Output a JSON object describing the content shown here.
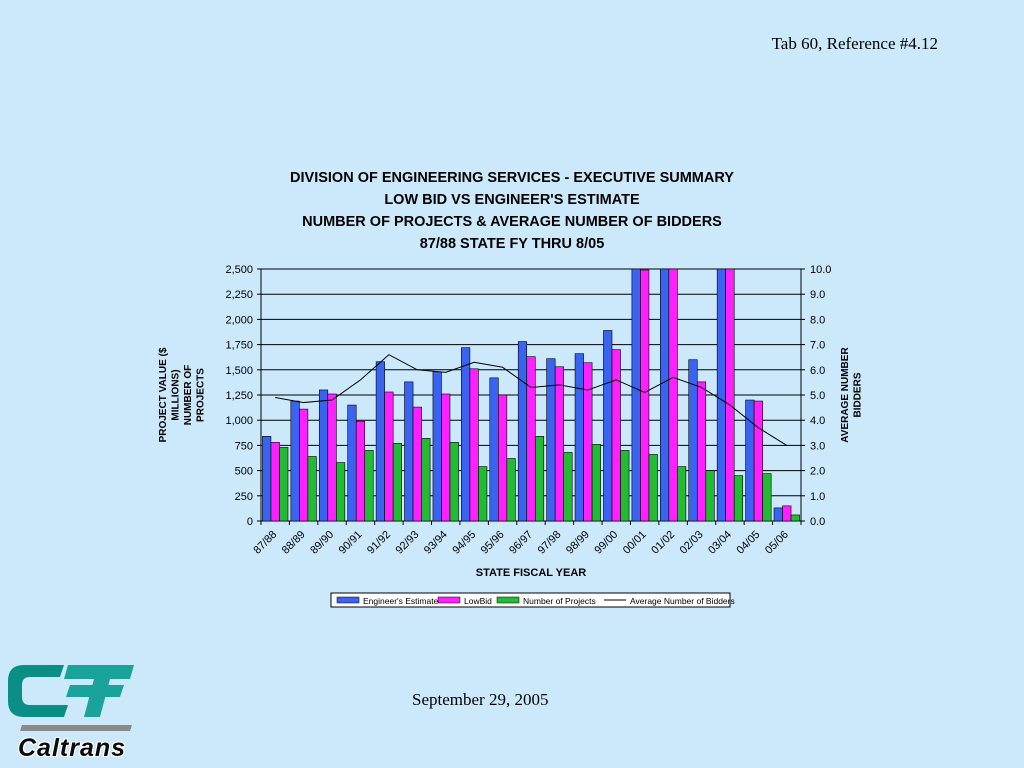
{
  "header": {
    "reference": "Tab 60, Reference #4.12"
  },
  "footer": {
    "date": "September 29, 2005"
  },
  "logo": {
    "text": "Caltrans"
  },
  "colors": {
    "background": "#cce9fb",
    "engineers_estimate": "#3a63f0",
    "low_bid": "#ff20ff",
    "number_of_projects": "#22bb33",
    "average_bidders": "#000000"
  },
  "chart_data": {
    "type": "bar",
    "title": [
      "DIVISION OF ENGINEERING SERVICES - EXECUTIVE SUMMARY",
      "LOW BID VS ENGINEER'S ESTIMATE",
      "NUMBER OF PROJECTS & AVERAGE NUMBER OF BIDDERS",
      "87/88 STATE FY THRU 8/05"
    ],
    "xlabel": "STATE FISCAL YEAR",
    "ylabel_left": [
      "PROJECT VALUE ($",
      "MILLIONS)",
      "NUMBER OF",
      "PROJECTS"
    ],
    "ylabel_right": [
      "AVERAGE NUMBER",
      "BIDDERS"
    ],
    "ylim_left": [
      0,
      2500
    ],
    "ylim_right": [
      0,
      10
    ],
    "yticks_left": [
      "0",
      "250",
      "500",
      "750",
      "1,000",
      "1,250",
      "1,500",
      "1,750",
      "2,000",
      "2,250",
      "2,500"
    ],
    "yticks_right": [
      "0.0",
      "1.0",
      "2.0",
      "3.0",
      "4.0",
      "5.0",
      "6.0",
      "7.0",
      "8.0",
      "9.0",
      "10.0"
    ],
    "grid": true,
    "legend_position": "bottom",
    "categories": [
      "87/88",
      "88/89",
      "89/90",
      "90/91",
      "91/92",
      "92/93",
      "93/94",
      "94/95",
      "95/96",
      "96/97",
      "97/98",
      "98/99",
      "99/00",
      "00/01",
      "01/02",
      "02/03",
      "03/04",
      "04/05",
      "05/06"
    ],
    "series": [
      {
        "name": "Engineer's Estimate",
        "axis": "left",
        "kind": "bar",
        "values": [
          840,
          1190,
          1300,
          1150,
          1580,
          1380,
          1480,
          1720,
          1420,
          1780,
          1610,
          1660,
          1890,
          2520,
          2520,
          1600,
          2520,
          1200,
          130
        ]
      },
      {
        "name": "LowBid",
        "axis": "left",
        "kind": "bar",
        "values": [
          780,
          1110,
          1260,
          990,
          1280,
          1130,
          1260,
          1510,
          1250,
          1630,
          1530,
          1570,
          1700,
          2490,
          2520,
          1380,
          2520,
          1190,
          150
        ]
      },
      {
        "name": "Number of Projects",
        "axis": "left",
        "kind": "bar",
        "values": [
          730,
          640,
          580,
          700,
          770,
          820,
          780,
          540,
          620,
          840,
          680,
          760,
          700,
          660,
          540,
          500,
          450,
          470,
          60
        ]
      },
      {
        "name": "Average Number of Bidders",
        "axis": "right",
        "kind": "line",
        "values": [
          4.9,
          4.7,
          4.8,
          5.6,
          6.6,
          6.0,
          5.9,
          6.3,
          6.1,
          5.3,
          5.4,
          5.2,
          5.6,
          5.1,
          5.7,
          5.3,
          4.6,
          3.7,
          3.0
        ]
      }
    ]
  }
}
